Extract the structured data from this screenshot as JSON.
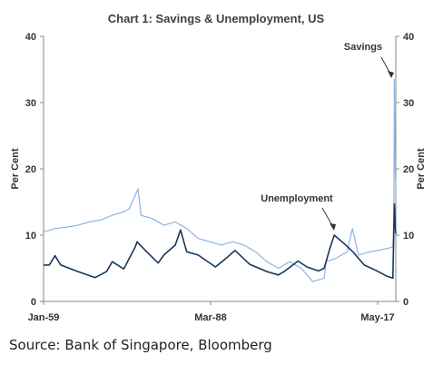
{
  "source": "Source: Bank of Singapore, Bloomberg",
  "chart_data": {
    "type": "line",
    "title": "Chart 1: Savings & Unemployment, US",
    "ylabel_left": "Per Cent",
    "ylabel_right": "Per Cent",
    "ylim": [
      0,
      40
    ],
    "yticks": [
      "0",
      "10",
      "20",
      "30",
      "40"
    ],
    "xticks": [
      "Jan-59",
      "Mar-88",
      "May-17"
    ],
    "x_range": [
      "Jan-59",
      "Jul-20"
    ],
    "grid": false,
    "annotations": [
      {
        "text": "Savings",
        "series": "Savings"
      },
      {
        "text": "Unemployment",
        "series": "Unemployment"
      }
    ],
    "series": [
      {
        "name": "Savings",
        "color": "#8eb4e3",
        "x": [
          "Jan-59",
          "Jan-61",
          "Jan-63",
          "Jan-65",
          "Jan-67",
          "Jan-69",
          "Jan-71",
          "Jan-73",
          "Jan-74",
          "Jul-75",
          "Jan-76",
          "Jan-78",
          "Jan-80",
          "Jan-82",
          "Jan-84",
          "Jan-86",
          "Jan-88",
          "Jan-90",
          "Jan-92",
          "Jan-94",
          "Jan-96",
          "Jan-98",
          "Jan-00",
          "Jan-02",
          "Jan-04",
          "Jan-05",
          "Jan-06",
          "Jan-08",
          "May-08",
          "Jan-10",
          "Jan-12",
          "Dec-12",
          "Jan-14",
          "Jan-16",
          "Jan-18",
          "Jan-19",
          "Jan-20",
          "Mar-20",
          "Apr-20",
          "May-20",
          "Jun-20",
          "Jul-20"
        ],
        "values": [
          10.5,
          11,
          11.2,
          11.5,
          12,
          12.3,
          13,
          13.5,
          14,
          17,
          13,
          12.5,
          11.5,
          12,
          11,
          9.5,
          9,
          8.5,
          9,
          8.5,
          7.5,
          6,
          5,
          6,
          5,
          4,
          3,
          3.5,
          6,
          6.5,
          7.5,
          11,
          7,
          7.5,
          7.8,
          8,
          8.2,
          13,
          33.5,
          24,
          19,
          17.5
        ]
      },
      {
        "name": "Unemployment",
        "color": "#17375e",
        "x": [
          "Jan-59",
          "Jan-60",
          "Jan-61",
          "Jan-62",
          "Jan-65",
          "Jan-68",
          "Jan-70",
          "Jan-71",
          "Jan-73",
          "Jan-75",
          "May-75",
          "Jan-77",
          "Jan-79",
          "Jan-80",
          "Jan-82",
          "Dec-82",
          "Jan-84",
          "Jan-86",
          "Jan-89",
          "Jan-91",
          "Jun-92",
          "Jan-95",
          "Jan-98",
          "Jan-00",
          "Jan-01",
          "Jun-03",
          "Jan-05",
          "Jan-07",
          "Jan-08",
          "Jan-09",
          "Oct-09",
          "Jan-11",
          "Jan-13",
          "Jan-15",
          "Jan-17",
          "Jan-19",
          "Jan-20",
          "Apr-20",
          "May-20",
          "Jun-20",
          "Jul-20"
        ],
        "values": [
          5.5,
          5.5,
          6.9,
          5.5,
          4.5,
          3.6,
          4.5,
          6,
          4.9,
          8.2,
          9,
          7.5,
          5.8,
          7,
          8.5,
          10.8,
          7.5,
          7,
          5.2,
          6.6,
          7.7,
          5.6,
          4.5,
          4,
          4.5,
          6.1,
          5.2,
          4.6,
          5,
          8,
          10,
          9.1,
          7.5,
          5.5,
          4.7,
          3.8,
          3.5,
          14.7,
          13.3,
          11.1,
          10.2
        ]
      }
    ]
  }
}
